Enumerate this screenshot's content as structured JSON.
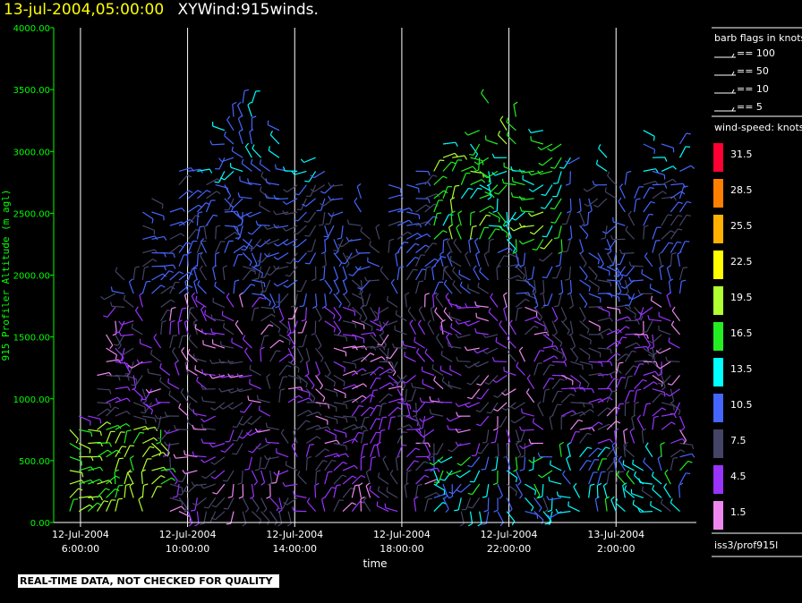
{
  "header": {
    "timestamp": "13-jul-2004,05:00:00",
    "title": "XYWind:915winds."
  },
  "warning": "REAL-TIME DATA, NOT CHECKED FOR QUALITY",
  "legend": {
    "barb_title": "barb flags in knots",
    "barbs": [
      "== 100",
      "== 50",
      "== 10",
      "== 5"
    ],
    "speed_title": "wind-speed: knots",
    "speed_levels": [
      {
        "label": "31.5",
        "color": "#ff0033"
      },
      {
        "label": "28.5",
        "color": "#ff8000"
      },
      {
        "label": "25.5",
        "color": "#ffb000"
      },
      {
        "label": "22.5",
        "color": "#ffff00"
      },
      {
        "label": "19.5",
        "color": "#b0ff30"
      },
      {
        "label": "16.5",
        "color": "#22ee22"
      },
      {
        "label": "13.5",
        "color": "#00ffff"
      },
      {
        "label": "10.5",
        "color": "#4466ff"
      },
      {
        "label": "7.5",
        "color": "#444466"
      },
      {
        "label": "4.5",
        "color": "#9933ff"
      },
      {
        "label": "1.5",
        "color": "#ee88ee"
      }
    ],
    "station": "iss3/prof915l"
  },
  "chart_data": {
    "type": "wind-barb time-height",
    "ylabel": "915 Profiler Altitude (m agl)",
    "xlabel": "time",
    "ylim": [
      0,
      4000
    ],
    "yticks": [
      "4000.00",
      "3500.00",
      "3000.00",
      "2500.00",
      "2000.00",
      "1500.00",
      "1000.00",
      "500.00",
      "0.00"
    ],
    "xticks": [
      {
        "date": "12-Jul-2004",
        "time": "6:00:00"
      },
      {
        "date": "12-Jul-2004",
        "time": "10:00:00"
      },
      {
        "date": "12-Jul-2004",
        "time": "14:00:00"
      },
      {
        "date": "12-Jul-2004",
        "time": "18:00:00"
      },
      {
        "date": "12-Jul-2004",
        "time": "22:00:00"
      },
      {
        "date": "13-Jul-2004",
        "time": "2:00:00"
      }
    ],
    "xlim_hours": [
      5.0,
      29.0
    ],
    "xtick_hours": [
      6,
      10,
      14,
      18,
      22,
      26
    ],
    "wind_field": [
      {
        "hour": 6.5,
        "alt_range": [
          100,
          1100
        ],
        "speed_range": [
          10,
          20
        ]
      },
      {
        "hour": 8.0,
        "alt_range": [
          100,
          2300
        ],
        "speed_range": [
          7,
          18
        ]
      },
      {
        "hour": 12.0,
        "alt_range": [
          100,
          3400
        ],
        "speed_range": [
          2,
          14
        ]
      },
      {
        "hour": 17.0,
        "alt_range": [
          100,
          2400
        ],
        "speed_range": [
          2,
          9
        ]
      },
      {
        "hour": 21.0,
        "alt_range": [
          100,
          3300
        ],
        "speed_range": [
          4,
          20
        ]
      },
      {
        "hour": 24.5,
        "alt_range": [
          100,
          2900
        ],
        "speed_range": [
          4,
          15
        ]
      },
      {
        "hour": 27.5,
        "alt_range": [
          100,
          3000
        ],
        "speed_range": [
          4,
          13
        ]
      }
    ]
  }
}
